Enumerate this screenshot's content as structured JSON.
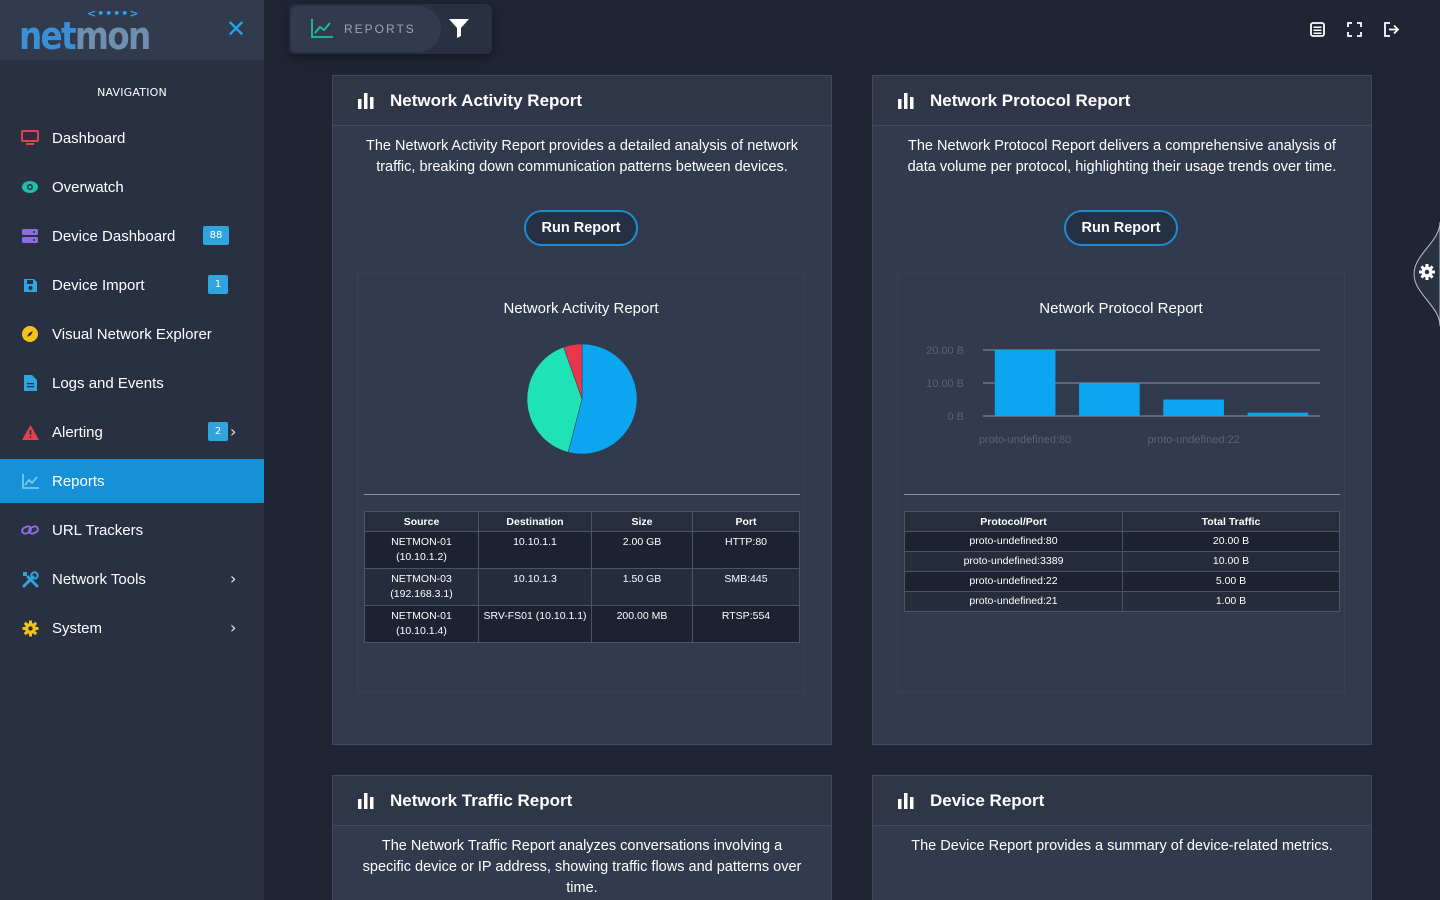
{
  "app": {
    "logo_dots": "<••••>",
    "logo_text_a": "net",
    "logo_text_b": "mon"
  },
  "nav": {
    "heading": "NAVIGATION",
    "items": [
      {
        "label": "Dashboard",
        "icon": "monitor-icon",
        "color": "#e8404a"
      },
      {
        "label": "Overwatch",
        "icon": "eye-icon",
        "color": "#1bc0a8"
      },
      {
        "label": "Device Dashboard",
        "icon": "server-icon",
        "color": "#8a6de0",
        "badge": "88"
      },
      {
        "label": "Device Import",
        "icon": "floppy-icon",
        "color": "#2fa4de",
        "badge": "1"
      },
      {
        "label": "Visual Network Explorer",
        "icon": "compass-icon",
        "color": "#f2c21a"
      },
      {
        "label": "Logs and Events",
        "icon": "file-icon",
        "color": "#2fa4de"
      },
      {
        "label": "Alerting",
        "icon": "warning-icon",
        "color": "#e8404a",
        "badge": "2"
      },
      {
        "label": "Reports",
        "icon": "chart-line-icon",
        "color": "#ffffff"
      },
      {
        "label": "URL Trackers",
        "icon": "link-icon",
        "color": "#8a6de0"
      },
      {
        "label": "Network Tools",
        "icon": "tools-icon",
        "color": "#2fa4de"
      },
      {
        "label": "System",
        "icon": "gear-icon",
        "color": "#f2c21a"
      }
    ]
  },
  "topbar": {
    "section_label": "REPORTS"
  },
  "cards": {
    "activity": {
      "title": "Network Activity Report",
      "description": "The Network Activity Report provides a detailed analysis of network traffic, breaking down communication patterns between devices.",
      "run_label": "Run Report",
      "chart_title": "Network Activity Report",
      "table": {
        "headers": [
          "Source",
          "Destination",
          "Size",
          "Port"
        ],
        "rows": [
          [
            "NETMON-01 (10.10.1.2)",
            "10.10.1.1",
            "2.00 GB",
            "HTTP:80"
          ],
          [
            "NETMON-03 (192.168.3.1)",
            "10.10.1.3",
            "1.50 GB",
            "SMB:445"
          ],
          [
            "NETMON-01 (10.10.1.4)",
            "SRV-FS01 (10.10.1.1)",
            "200.00 MB",
            "RTSP:554"
          ]
        ]
      }
    },
    "protocol": {
      "title": "Network Protocol Report",
      "description": "The Network Protocol Report delivers a comprehensive analysis of data volume per protocol, highlighting their usage trends over time.",
      "run_label": "Run Report",
      "chart_title": "Network Protocol Report",
      "table": {
        "headers": [
          "Protocol/Port",
          "Total Traffic"
        ],
        "rows": [
          [
            "proto-undefined:80",
            "20.00 B"
          ],
          [
            "proto-undefined:3389",
            "10.00 B"
          ],
          [
            "proto-undefined:22",
            "5.00 B"
          ],
          [
            "proto-undefined:21",
            "1.00 B"
          ]
        ]
      }
    },
    "traffic": {
      "title": "Network Traffic Report",
      "description": "The Network Traffic Report analyzes conversations involving a specific device or IP address, showing traffic flows and patterns over time."
    },
    "device": {
      "title": "Device Report",
      "description": "The Device Report provides a summary of device-related metrics."
    }
  },
  "chart_data": [
    {
      "type": "pie",
      "title": "Network Activity Report",
      "labels": [
        "HTTP:80",
        "SMB:445",
        "RTSP:554"
      ],
      "values": [
        2.0,
        1.5,
        0.2
      ],
      "colors": [
        "#0ba5f0",
        "#1fe3b6",
        "#e8364a"
      ]
    },
    {
      "type": "bar",
      "title": "Network Protocol Report",
      "categories": [
        "proto-undefined:80",
        "proto-undefined:3389",
        "proto-undefined:22",
        "proto-undefined:21"
      ],
      "tick_labels": [
        "proto-undefined:80",
        "proto-undefined:22"
      ],
      "values": [
        20,
        10,
        5,
        1
      ],
      "y_ticks": [
        "0 B",
        "10.00 B",
        "20.00 B"
      ],
      "ylim": [
        0,
        20
      ],
      "color": "#0ba5f0"
    }
  ]
}
